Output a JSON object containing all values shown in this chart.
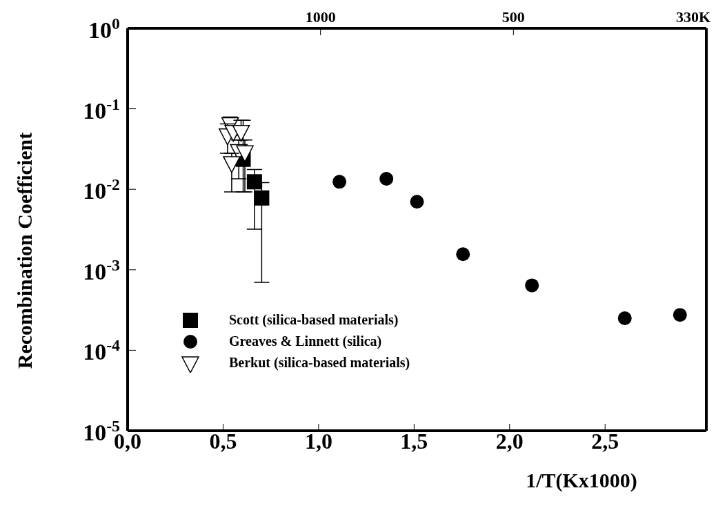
{
  "chart_data": {
    "type": "scatter",
    "xlabel": "1/T(Kx1000)",
    "ylabel": "Recombination Coefficient",
    "log": "y",
    "xlim": [
      0,
      3.03
    ],
    "xticks": [
      {
        "value": 0,
        "label": "0,0"
      },
      {
        "value": 0.5,
        "label": "0,5"
      },
      {
        "value": 1,
        "label": "1,0"
      },
      {
        "value": 1.5,
        "label": "1,5"
      },
      {
        "value": 2,
        "label": "2,0"
      },
      {
        "value": 2.5,
        "label": "2,5"
      }
    ],
    "annotations": [
      "1000",
      "500",
      "330K"
    ],
    "ylim": [
      1e-05,
      1
    ],
    "yticks": [
      {
        "value": 1e-05,
        "label": "10$^{-5}$"
      },
      {
        "value": 0.0001,
        "label": "10$^{-4}$"
      },
      {
        "value": 0.001,
        "label": "10$^{-3}$"
      },
      {
        "value": 0.01,
        "label": "10$^{-2}$"
      },
      {
        "value": 0.1,
        "label": "10$^{-1}$"
      },
      {
        "value": 1,
        "label": "10$^{0}$"
      }
    ],
    "grid": false,
    "legend": "bottom left",
    "series": [
      {
        "name": "Scott (silica-based materials)",
        "color": "#000000",
        "marker": "square",
        "x": [
          0.605,
          0.664,
          0.702
        ],
        "values": [
          0.0236,
          0.0124,
          0.0078
        ],
        "errors": [
          [
            0.0093,
            0.072
          ],
          [
            0.0032,
            0.0176
          ],
          [
            0.0007,
            0.0121
          ]
        ]
      },
      {
        "name": "Greaves & Linnett (silica)",
        "color": "#000000",
        "marker": "circle",
        "x": [
          1.109,
          1.355,
          1.515,
          1.756,
          2.117,
          2.603,
          2.892
        ],
        "values": [
          0.0124,
          0.0135,
          0.007,
          0.00156,
          0.00064,
          0.00025,
          0.000275
        ]
      },
      {
        "name": "Berkut (silica-based materials)",
        "color": "#000000",
        "marker": "triangle",
        "x": [
          0.537,
          0.523,
          0.553,
          0.594,
          0.582,
          0.614,
          0.545
        ],
        "values": [
          0.065,
          0.047,
          0.052,
          0.052,
          0.03,
          0.029,
          0.0213
        ],
        "errors": [
          [
            0.047,
            0.079
          ],
          [
            0.028,
            0.065
          ],
          null,
          [
            0.041,
            0.072
          ],
          [
            0.0135,
            0.041
          ],
          [
            0.0093,
            0.041
          ],
          [
            0.0093,
            0.028
          ]
        ]
      }
    ]
  }
}
